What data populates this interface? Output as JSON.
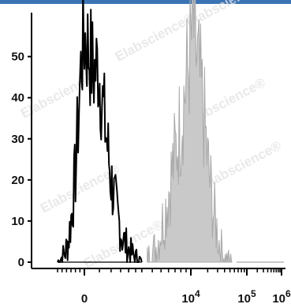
{
  "colors": {
    "top_bar": "#3a74b6",
    "unstained": "#000000",
    "stained_fill": "#c9c9c9",
    "stained_line": "#a9a9a9",
    "axis": "#000000"
  },
  "watermark": "Elabscience®",
  "chart_data": {
    "type": "histogram",
    "title": "",
    "xlabel": "",
    "ylabel": "",
    "x_scale": "biexponential",
    "ylim": [
      0,
      58
    ],
    "y_ticks": [
      0,
      10,
      20,
      30,
      40,
      50
    ],
    "y_tick_labels": [
      "0",
      "10",
      "20",
      "30",
      "40",
      "50"
    ],
    "x_ticks": [
      0,
      10000,
      100000,
      1000000
    ],
    "x_tick_labels": [
      {
        "base": "0",
        "exp": ""
      },
      {
        "base": "10",
        "exp": "4"
      },
      {
        "base": "10",
        "exp": "5"
      },
      {
        "base": "10",
        "exp": "6"
      }
    ],
    "grid": false,
    "legend": "none",
    "series": [
      {
        "style": "outline",
        "color": "#000000",
        "x": [
          -3000,
          -2200,
          -1800,
          -1400,
          -1000,
          -700,
          -500,
          -300,
          -150,
          0,
          150,
          300,
          450,
          600,
          800,
          1000,
          1300,
          1600,
          2000,
          2500,
          3000
        ],
        "y": [
          0,
          2,
          5,
          12,
          22,
          34,
          43,
          50,
          53,
          55,
          51,
          46,
          48,
          40,
          30,
          20,
          12,
          6,
          3,
          1,
          0
        ]
      },
      {
        "style": "filled",
        "color": "#c9c9c9",
        "x": [
          3500,
          4500,
          5500,
          6500,
          8000,
          9000,
          10000,
          11000,
          12000,
          14000,
          17000,
          20000,
          25000,
          32000,
          40000,
          55000
        ],
        "y": [
          1,
          4,
          12,
          22,
          34,
          44,
          52,
          58,
          52,
          45,
          36,
          24,
          13,
          5,
          1,
          0
        ]
      }
    ]
  }
}
